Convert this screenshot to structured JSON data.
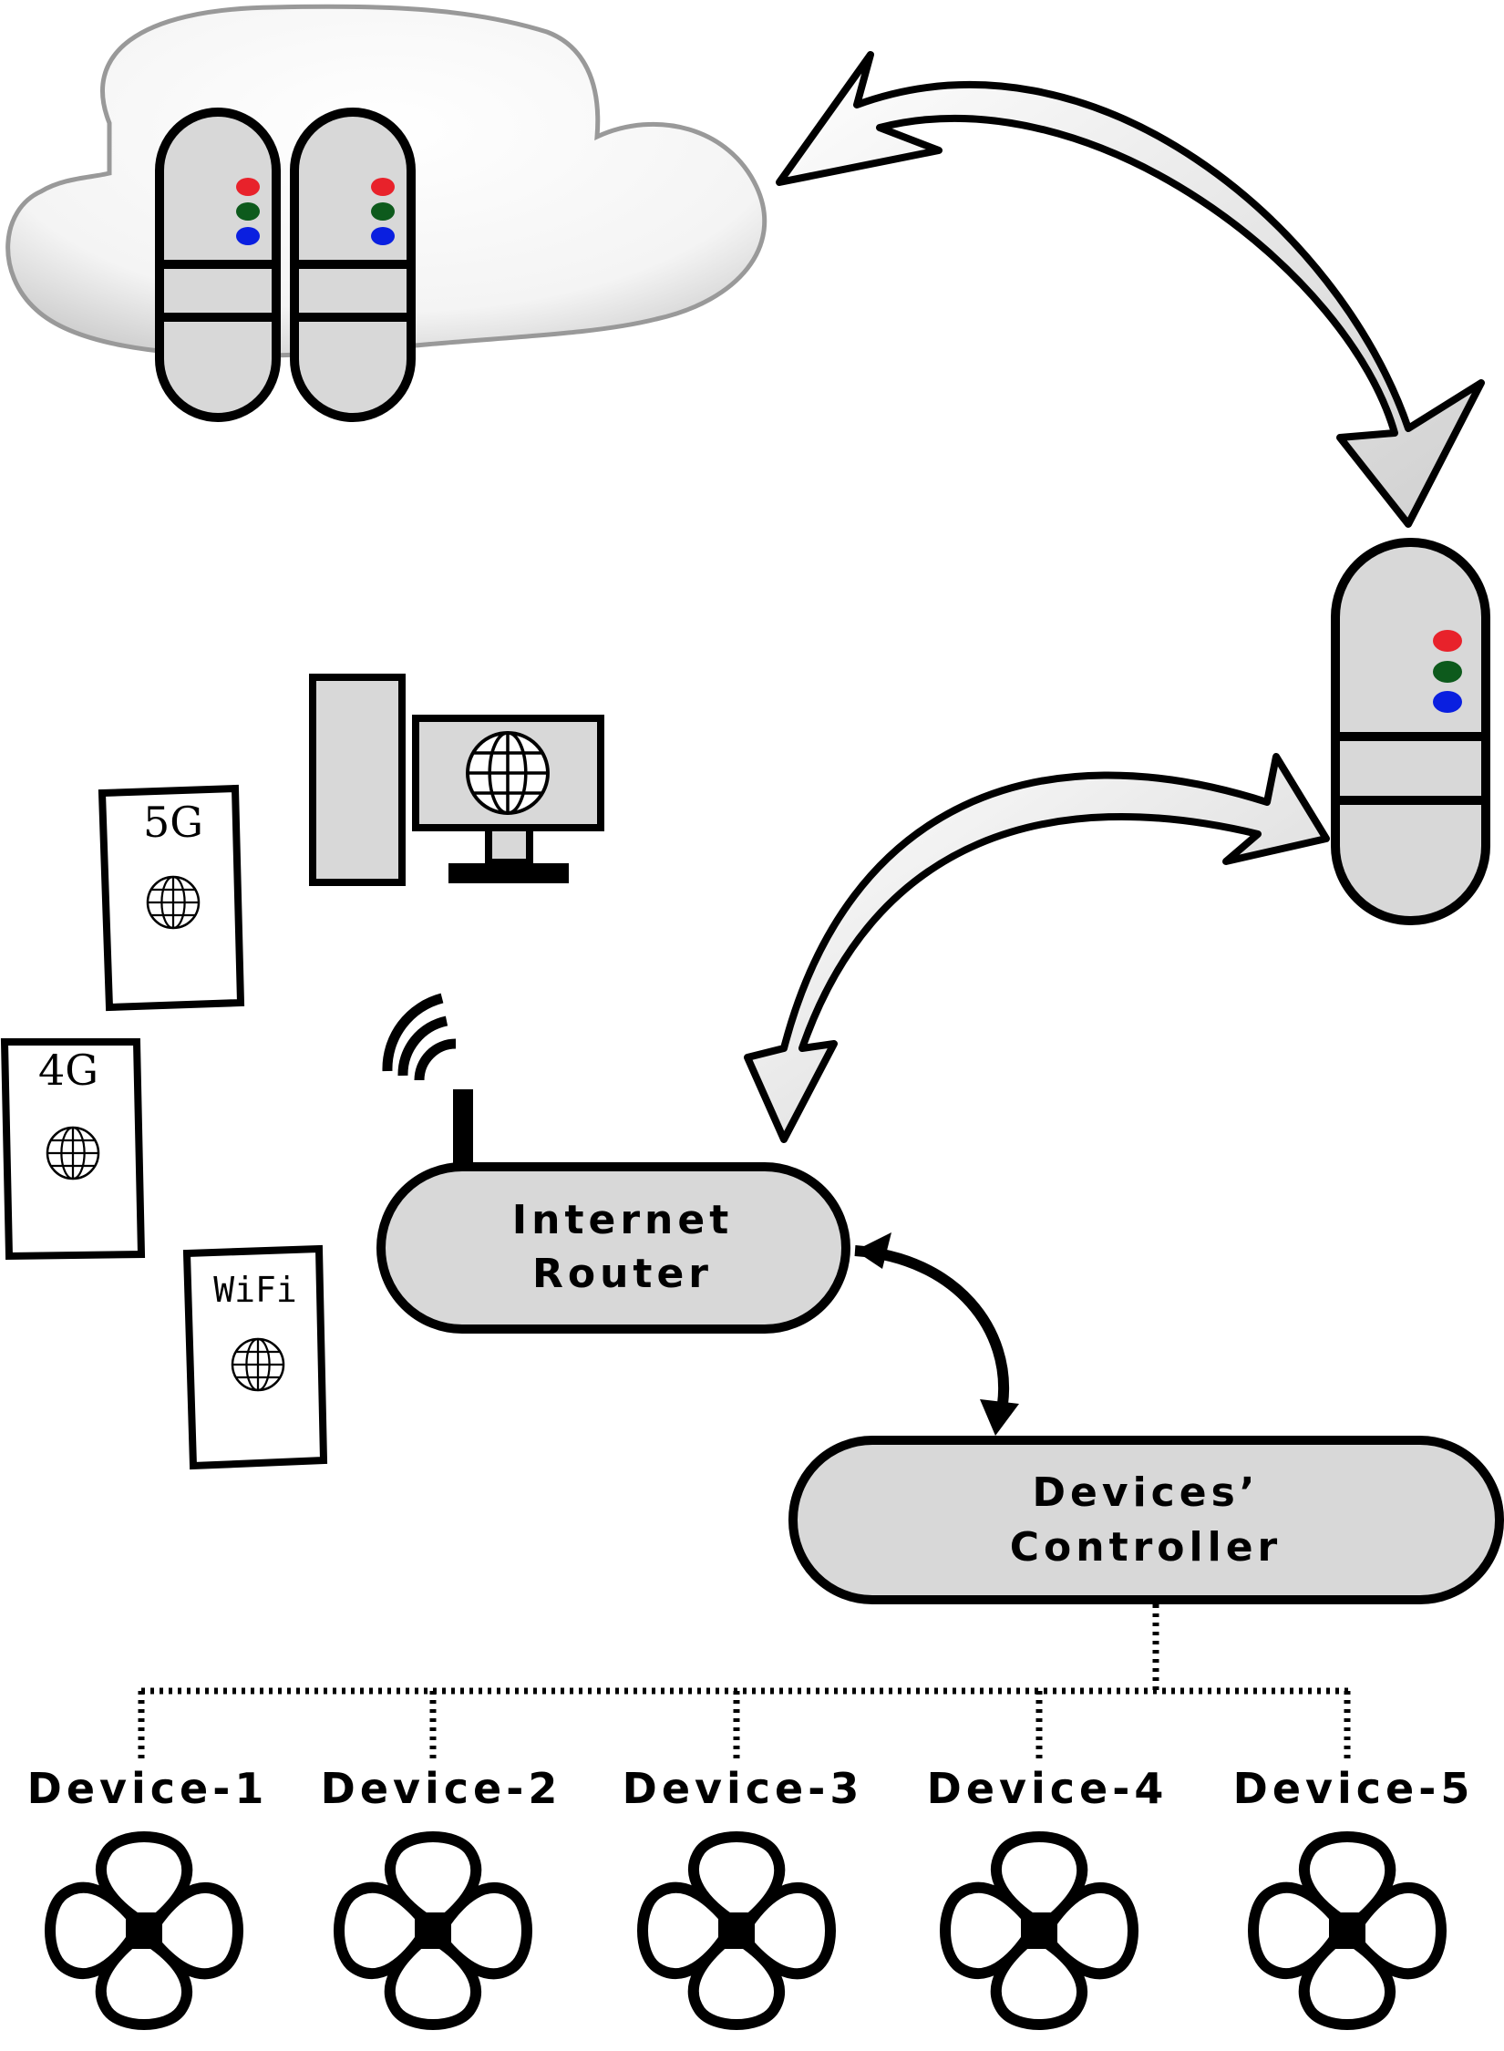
{
  "router": {
    "line1": "Internet",
    "line2": "Router"
  },
  "controller": {
    "line1": "Devices’",
    "line2": "Controller"
  },
  "phones": [
    {
      "label": "5G"
    },
    {
      "label": "4G"
    },
    {
      "label": "WiFi"
    }
  ],
  "devices": [
    {
      "label": "Device-1"
    },
    {
      "label": "Device-2"
    },
    {
      "label": "Device-3"
    },
    {
      "label": "Device-4"
    },
    {
      "label": "Device-5"
    }
  ],
  "colors": {
    "led_red": "#e8222b",
    "led_green": "#0d5a1c",
    "led_blue": "#0a1fe0",
    "fill_gray": "#d8d8d8",
    "stroke": "#000000"
  },
  "icons": [
    "cloud-icon",
    "server-icon",
    "computer-icon",
    "globe-icon",
    "wifi-signal-icon",
    "drone-icon"
  ]
}
